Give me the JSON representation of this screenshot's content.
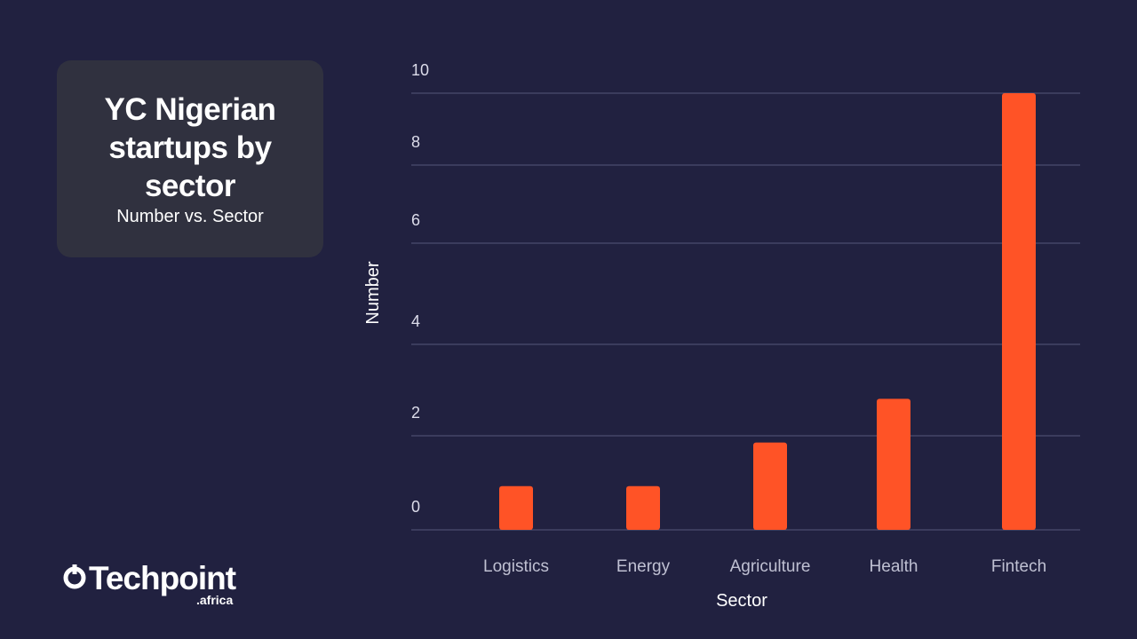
{
  "chart_data": {
    "type": "bar",
    "title": "YC Nigerian startups by sector",
    "subtitle": "Number vs. Sector",
    "xlabel": "Sector",
    "ylabel": "Number",
    "categories": [
      "Logistics",
      "Energy",
      "Agriculture",
      "Health",
      "Fintech"
    ],
    "values": [
      1,
      1,
      2,
      3,
      10
    ],
    "yticks": [
      0,
      2,
      4,
      6,
      8,
      10
    ],
    "ylim": [
      0,
      10
    ],
    "grid": true,
    "bar_color": "#ff5326"
  },
  "branding": {
    "logo_name": "Techpoint",
    "logo_suffix": ".africa"
  }
}
